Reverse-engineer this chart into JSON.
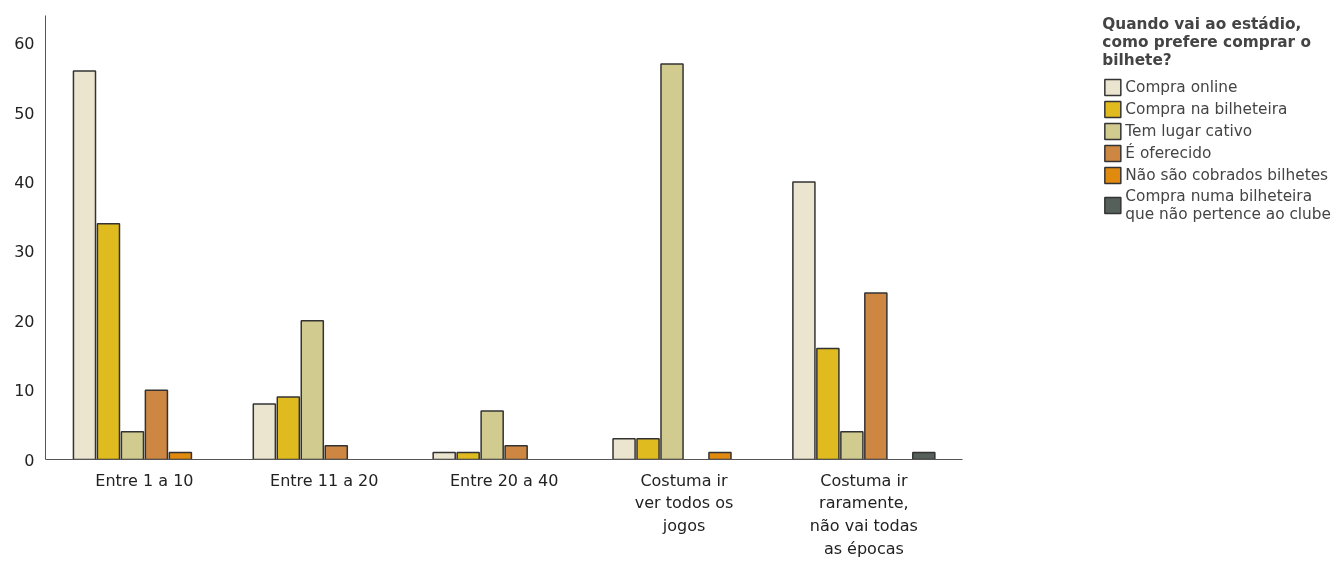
{
  "chart_data": {
    "type": "bar",
    "categories": [
      "Entre 1 a 10",
      "Entre 11 a 20",
      "Entre 20 a 40",
      "Costuma ir ver todos os jogos",
      "Costuma ir raramente, não vai todas as épocas"
    ],
    "legend_title": "Quando vai ao estádio, como prefere comprar o bilhete?",
    "series": [
      {
        "name": "Compra online",
        "color": "#ebe5cf",
        "values": [
          56,
          8,
          1,
          3,
          40
        ]
      },
      {
        "name": "Compra na bilheteira",
        "color": "#e0bb1f",
        "values": [
          34,
          9,
          1,
          3,
          16
        ]
      },
      {
        "name": "Tem lugar cativo",
        "color": "#d1cb8f",
        "values": [
          4,
          20,
          7,
          57,
          4
        ]
      },
      {
        "name": "É oferecido",
        "color": "#ce8742",
        "values": [
          10,
          2,
          2,
          null,
          24
        ]
      },
      {
        "name": "Não são cobrados bilhetes",
        "color": "#e08a10",
        "values": [
          1,
          null,
          null,
          1,
          null
        ]
      },
      {
        "name": "Compra numa bilheteira que não pertence ao clube",
        "color": "#56605a",
        "values": [
          null,
          null,
          null,
          null,
          1
        ]
      }
    ],
    "ylim": [
      0,
      64
    ],
    "yticks": [
      0,
      10,
      20,
      30,
      40,
      50,
      60
    ],
    "grid": false,
    "legend": "right"
  }
}
